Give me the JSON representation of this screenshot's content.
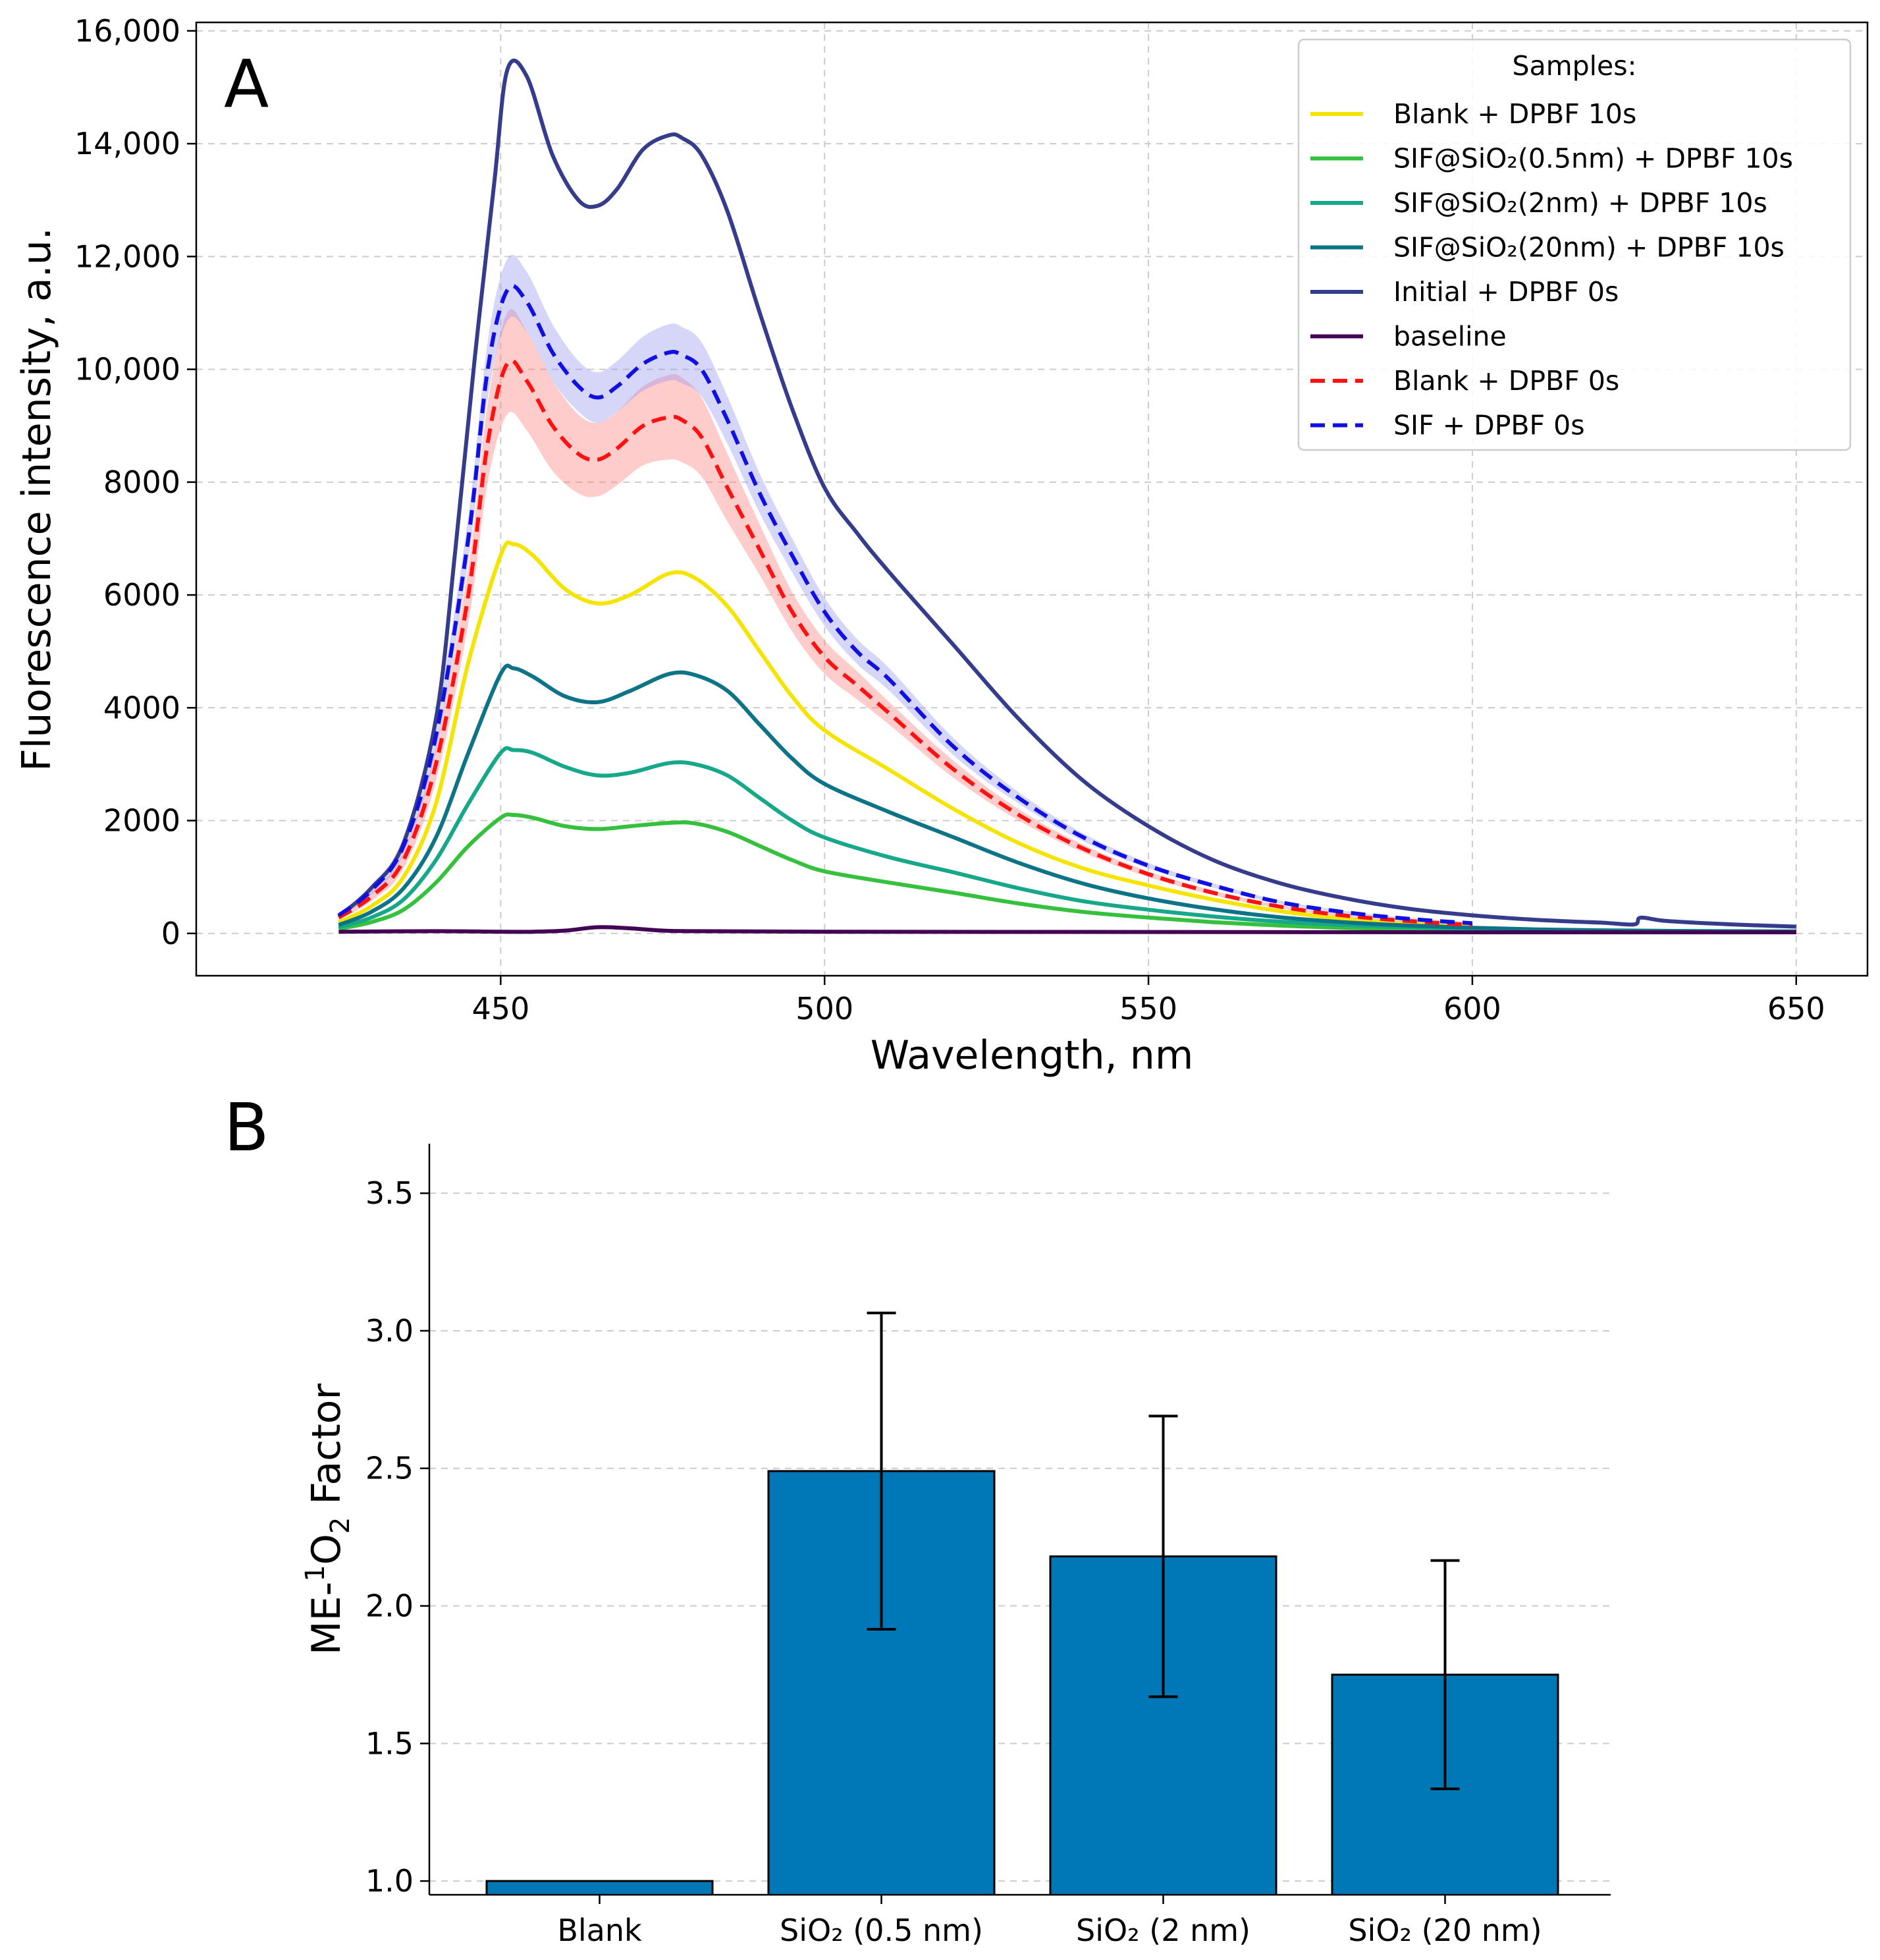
{
  "chart_data": [
    {
      "panel_label": "A",
      "type": "line",
      "xlabel": "Wavelength, nm",
      "ylabel": "Fluorescence intensity, a.u.",
      "xlim": [
        403,
        661
      ],
      "ylim": [
        -750,
        16150
      ],
      "xticks": [
        450,
        500,
        550,
        600,
        650
      ],
      "xtick_labels": [
        "450",
        "500",
        "550",
        "600",
        "650"
      ],
      "yticks": [
        0,
        2000,
        4000,
        6000,
        8000,
        10000,
        12000,
        14000,
        16000
      ],
      "ytick_labels": [
        "0",
        "2000",
        "4000",
        "6000",
        "8000",
        "10,000",
        "12,000",
        "14,000",
        "16,000"
      ],
      "grid": true,
      "legend_title": "Samples:",
      "legend_position": "top-right",
      "series": [
        {
          "name": "Blank + DPBF 10s",
          "color": "#f5e300",
          "style": "solid",
          "x": [
            425,
            430,
            435,
            440,
            445,
            450,
            452,
            455,
            460,
            465,
            470,
            476,
            480,
            485,
            490,
            495,
            500,
            510,
            520,
            530,
            540,
            550,
            560,
            570,
            580,
            590,
            600
          ],
          "y": [
            200,
            480,
            1000,
            2300,
            4800,
            6700,
            6900,
            6700,
            6100,
            5850,
            6000,
            6380,
            6300,
            5800,
            5000,
            4200,
            3600,
            2900,
            2200,
            1600,
            1150,
            850,
            600,
            400,
            260,
            170,
            110
          ]
        },
        {
          "name": "SIF@SiO₂(0.5nm) + DPBF 10s",
          "color": "#35c13e",
          "style": "solid",
          "x": [
            425,
            430,
            435,
            440,
            445,
            450,
            452,
            455,
            460,
            465,
            470,
            476,
            480,
            485,
            490,
            495,
            500,
            510,
            520,
            530,
            540,
            550,
            560,
            570,
            580,
            590,
            600,
            610,
            620,
            630,
            640,
            650
          ],
          "y": [
            80,
            200,
            420,
            900,
            1550,
            2050,
            2100,
            2050,
            1900,
            1850,
            1900,
            1960,
            1950,
            1800,
            1550,
            1300,
            1100,
            900,
            720,
            530,
            380,
            280,
            200,
            140,
            100,
            80,
            60,
            50,
            40,
            35,
            30,
            30
          ]
        },
        {
          "name": "SIF@SiO₂(2nm) + DPBF 10s",
          "color": "#16a889",
          "style": "solid",
          "x": [
            425,
            430,
            435,
            440,
            445,
            450,
            452,
            455,
            460,
            465,
            470,
            476,
            480,
            485,
            490,
            495,
            500,
            510,
            520,
            530,
            540,
            550,
            560,
            570,
            580,
            590,
            600,
            610,
            620,
            630,
            640,
            650
          ],
          "y": [
            110,
            280,
            600,
            1300,
            2300,
            3200,
            3250,
            3200,
            2950,
            2800,
            2850,
            3020,
            3000,
            2800,
            2400,
            2000,
            1700,
            1350,
            1080,
            800,
            570,
            420,
            300,
            210,
            150,
            110,
            80,
            60,
            50,
            40,
            35,
            30
          ]
        },
        {
          "name": "SIF@SiO₂(20nm) + DPBF 10s",
          "color": "#0c7486",
          "style": "solid",
          "x": [
            425,
            430,
            435,
            440,
            445,
            450,
            452,
            455,
            460,
            465,
            470,
            476,
            480,
            485,
            490,
            495,
            500,
            510,
            520,
            530,
            540,
            550,
            560,
            570,
            580,
            590,
            600,
            610,
            620,
            630,
            640,
            650
          ],
          "y": [
            150,
            380,
            800,
            1700,
            3200,
            4600,
            4700,
            4550,
            4200,
            4100,
            4300,
            4600,
            4580,
            4300,
            3700,
            3100,
            2650,
            2150,
            1700,
            1250,
            880,
            620,
            430,
            290,
            200,
            140,
            100,
            70,
            55,
            45,
            40,
            35
          ]
        },
        {
          "name": "Initial + DPBF 0s",
          "color": "#363c8c",
          "style": "solid",
          "x": [
            425,
            430,
            435,
            440,
            443,
            446,
            449,
            451,
            454,
            458,
            462,
            465,
            468,
            472,
            476,
            478,
            481,
            485,
            490,
            495,
            500,
            505,
            510,
            520,
            530,
            540,
            550,
            560,
            570,
            580,
            590,
            600,
            610,
            620,
            625,
            626,
            630,
            640,
            650
          ],
          "y": [
            300,
            800,
            1600,
            3800,
            6800,
            10200,
            13300,
            15300,
            15200,
            13800,
            13000,
            12900,
            13200,
            13900,
            14150,
            14100,
            13800,
            12800,
            11000,
            9300,
            7900,
            7100,
            6400,
            5100,
            3800,
            2700,
            1900,
            1300,
            900,
            630,
            440,
            320,
            240,
            190,
            160,
            280,
            220,
            160,
            120
          ]
        },
        {
          "name": "baseline",
          "color": "#440154",
          "style": "solid",
          "x": [
            425,
            440,
            450,
            455,
            460,
            465,
            470,
            475,
            480,
            500,
            550,
            600,
            650
          ],
          "y": [
            30,
            40,
            30,
            30,
            50,
            110,
            90,
            50,
            40,
            30,
            25,
            20,
            20
          ]
        },
        {
          "name": "Blank + DPBF 0s",
          "color": "#ff1111",
          "style": "dashed",
          "band_color": "#ff8080",
          "x": [
            425,
            430,
            435,
            440,
            445,
            448,
            451,
            454,
            458,
            462,
            465,
            468,
            472,
            476,
            478,
            481,
            485,
            490,
            495,
            500,
            505,
            510,
            520,
            530,
            540,
            550,
            560,
            570,
            580,
            590,
            600
          ],
          "y": [
            280,
            650,
            1300,
            3000,
            6000,
            8700,
            10100,
            9800,
            9000,
            8500,
            8400,
            8600,
            9000,
            9150,
            9100,
            8800,
            7900,
            6800,
            5700,
            4900,
            4400,
            3900,
            2900,
            2100,
            1500,
            1050,
            720,
            480,
            320,
            220,
            150
          ],
          "band_half_width": [
            40,
            80,
            150,
            300,
            500,
            700,
            900,
            880,
            800,
            700,
            650,
            650,
            700,
            750,
            750,
            700,
            600,
            450,
            350,
            300,
            250,
            200,
            150,
            100,
            70,
            50,
            40,
            30,
            25,
            20,
            15
          ]
        },
        {
          "name": "SIF + DPBF 0s",
          "color": "#1010e0",
          "style": "dashed",
          "band_color": "#9999ee",
          "x": [
            425,
            430,
            435,
            440,
            445,
            448,
            451,
            454,
            458,
            462,
            465,
            468,
            472,
            476,
            478,
            481,
            485,
            490,
            495,
            500,
            505,
            510,
            520,
            530,
            540,
            550,
            560,
            570,
            580,
            590,
            600
          ],
          "y": [
            320,
            760,
            1550,
            3500,
            7000,
            10000,
            11400,
            11200,
            10300,
            9700,
            9500,
            9700,
            10100,
            10300,
            10250,
            10000,
            9100,
            7800,
            6700,
            5700,
            5000,
            4500,
            3300,
            2400,
            1700,
            1200,
            850,
            560,
            380,
            260,
            180
          ],
          "band_half_width": [
            40,
            80,
            150,
            280,
            400,
            500,
            550,
            530,
            500,
            450,
            450,
            450,
            480,
            500,
            500,
            480,
            420,
            350,
            300,
            250,
            220,
            200,
            150,
            100,
            70,
            50,
            40,
            30,
            25,
            20,
            15
          ]
        }
      ]
    },
    {
      "panel_label": "B",
      "type": "bar",
      "xlabel": "",
      "ylabel": "ME-¹O₂ Factor",
      "ylabel_parts": {
        "prefix": "ME-",
        "sup": "1",
        "base": "O",
        "sub": "2",
        "suffix": " Factor"
      },
      "ylim": [
        0.95,
        3.68
      ],
      "yticks": [
        1.0,
        1.5,
        2.0,
        2.5,
        3.0,
        3.5
      ],
      "ytick_labels": [
        "1.0",
        "1.5",
        "2.0",
        "2.5",
        "3.0",
        "3.5"
      ],
      "grid": true,
      "bar_color": "#0077b6",
      "categories": [
        "Blank",
        "SiO₂ (0.5 nm)",
        "SiO₂ (2 nm)",
        "SiO₂ (20 nm)"
      ],
      "values": [
        1.0,
        2.49,
        2.18,
        1.75
      ],
      "errors": [
        0,
        0.575,
        0.51,
        0.415
      ]
    }
  ]
}
